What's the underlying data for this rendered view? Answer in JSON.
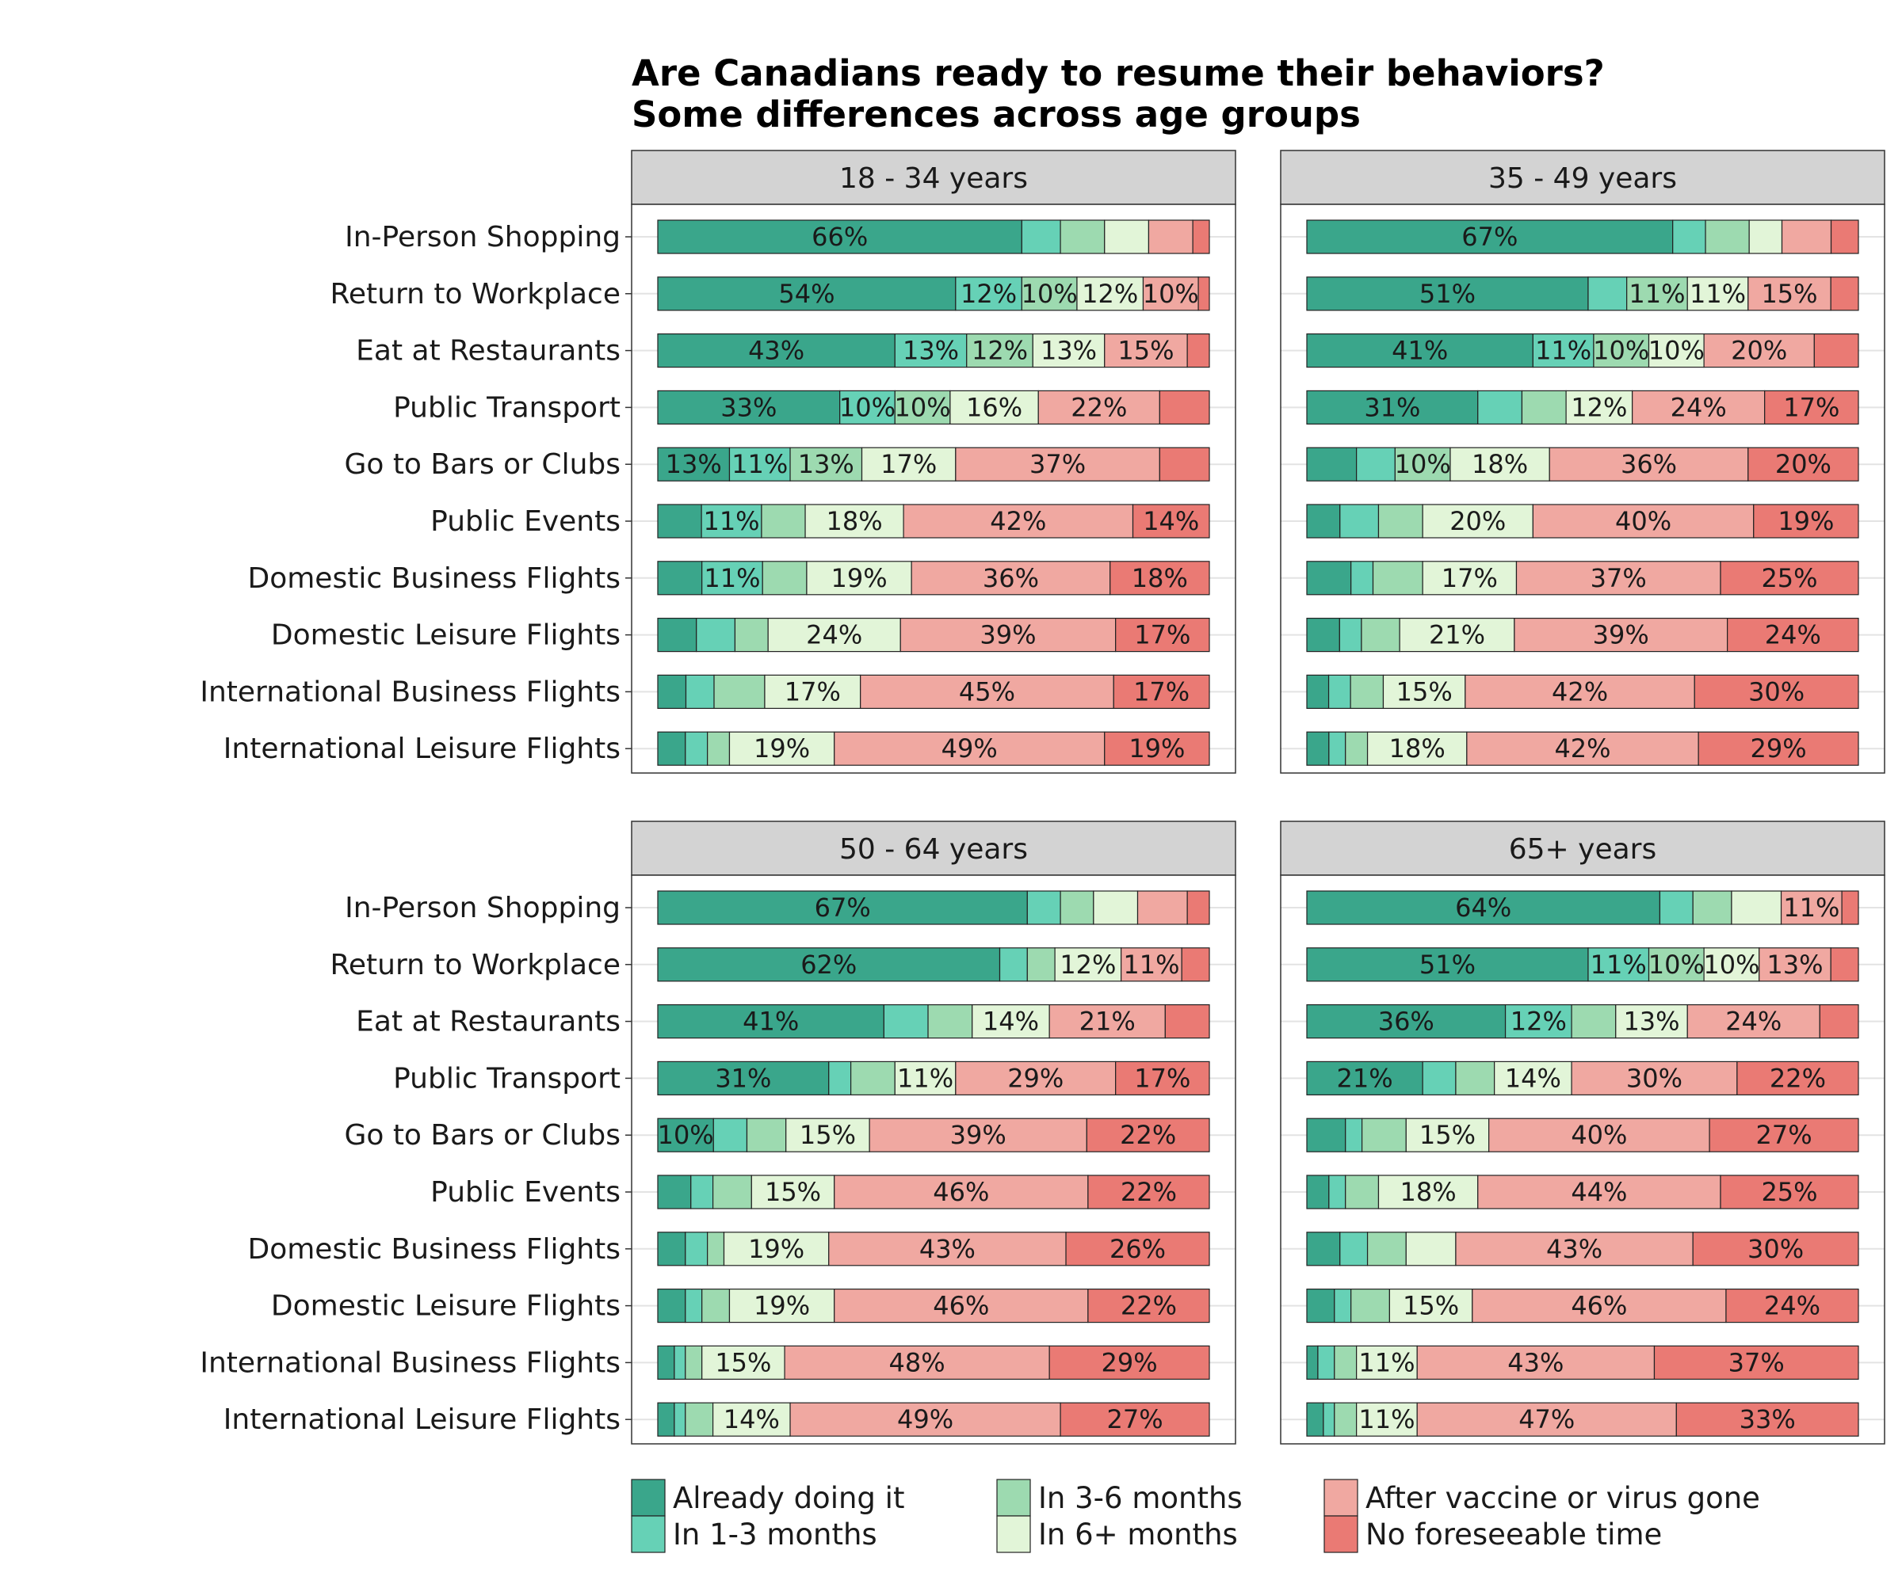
{
  "chart_data": {
    "type": "bar",
    "orientation": "horizontal",
    "stacked": "percent",
    "title": "Are Canadians ready to resume their behaviors?",
    "subtitle": "Some differences across age groups",
    "categories": [
      "In-Person Shopping",
      "Return to Workplace",
      "Eat at Restaurants",
      "Public Transport",
      "Go to Bars or Clubs",
      "Public Events",
      "Domestic Business Flights",
      "Domestic Leisure Flights",
      "International Business Flights",
      "International Leisure Flights"
    ],
    "series_names": [
      "Already doing it",
      "In 1-3 months",
      "In 3-6 months",
      "In 6+ months",
      "After vaccine or virus gone",
      "No foreseeable time"
    ],
    "colors": [
      "#3aa68b",
      "#66d1b6",
      "#9ddab0",
      "#e2f5d8",
      "#f0a8a1",
      "#ea7a74"
    ],
    "label_threshold": 10,
    "legend_position": "bottom",
    "grid": true,
    "panels": [
      {
        "name": "18 - 34 years",
        "rows": [
          [
            66,
            7,
            8,
            8,
            8,
            3
          ],
          [
            54,
            12,
            10,
            12,
            10,
            2
          ],
          [
            43,
            13,
            12,
            13,
            15,
            4
          ],
          [
            33,
            10,
            10,
            16,
            22,
            9
          ],
          [
            13,
            11,
            13,
            17,
            37,
            9
          ],
          [
            8,
            11,
            8,
            18,
            42,
            14
          ],
          [
            8,
            11,
            8,
            19,
            36,
            18
          ],
          [
            7,
            7,
            6,
            24,
            39,
            17
          ],
          [
            5,
            5,
            9,
            17,
            45,
            17
          ],
          [
            5,
            4,
            4,
            19,
            49,
            19
          ]
        ]
      },
      {
        "name": "35 - 49 years",
        "rows": [
          [
            67,
            6,
            8,
            6,
            9,
            5
          ],
          [
            51,
            7,
            11,
            11,
            15,
            5
          ],
          [
            41,
            11,
            10,
            10,
            20,
            8
          ],
          [
            31,
            8,
            8,
            12,
            24,
            17
          ],
          [
            9,
            7,
            10,
            18,
            36,
            20
          ],
          [
            6,
            7,
            8,
            20,
            40,
            19
          ],
          [
            8,
            4,
            9,
            17,
            37,
            25
          ],
          [
            6,
            4,
            7,
            21,
            39,
            24
          ],
          [
            4,
            4,
            6,
            15,
            42,
            30
          ],
          [
            4,
            3,
            4,
            18,
            42,
            29
          ]
        ]
      },
      {
        "name": "50 - 64 years",
        "rows": [
          [
            67,
            6,
            6,
            8,
            9,
            4
          ],
          [
            62,
            5,
            5,
            12,
            11,
            5
          ],
          [
            41,
            8,
            8,
            14,
            21,
            8
          ],
          [
            31,
            4,
            8,
            11,
            29,
            17
          ],
          [
            10,
            6,
            7,
            15,
            39,
            22
          ],
          [
            6,
            4,
            7,
            15,
            46,
            22
          ],
          [
            5,
            4,
            3,
            19,
            43,
            26
          ],
          [
            5,
            3,
            5,
            19,
            46,
            22
          ],
          [
            3,
            2,
            3,
            15,
            48,
            29
          ],
          [
            3,
            2,
            5,
            14,
            49,
            27
          ]
        ]
      },
      {
        "name": "65+ years",
        "rows": [
          [
            64,
            6,
            7,
            9,
            11,
            3
          ],
          [
            51,
            11,
            10,
            10,
            13,
            5
          ],
          [
            36,
            12,
            8,
            13,
            24,
            7
          ],
          [
            21,
            6,
            7,
            14,
            30,
            22
          ],
          [
            7,
            3,
            8,
            15,
            40,
            27
          ],
          [
            4,
            3,
            6,
            18,
            44,
            25
          ],
          [
            6,
            5,
            7,
            9,
            43,
            30
          ],
          [
            5,
            3,
            7,
            15,
            46,
            24
          ],
          [
            2,
            3,
            4,
            11,
            43,
            37
          ],
          [
            3,
            2,
            4,
            11,
            47,
            33
          ]
        ]
      }
    ]
  }
}
